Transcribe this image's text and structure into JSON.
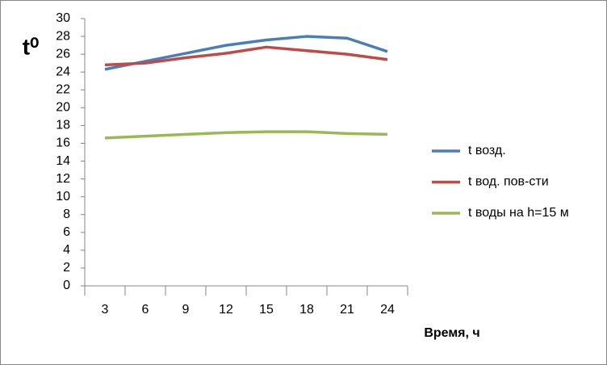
{
  "chart_data": {
    "type": "line",
    "ylabel": "t⁰",
    "xlabel": "Время, ч",
    "categories": [
      3,
      6,
      9,
      12,
      15,
      18,
      21,
      24
    ],
    "series": [
      {
        "name": "t возд.",
        "color": "#4a7ebb",
        "values": [
          24.3,
          25.2,
          26.1,
          27.0,
          27.6,
          28.0,
          27.8,
          26.3
        ]
      },
      {
        "name": "t вод. пов-сти",
        "color": "#be4b48",
        "values": [
          24.8,
          25.0,
          25.6,
          26.1,
          26.8,
          26.4,
          26.0,
          25.4
        ]
      },
      {
        "name": "t воды на h=15 м",
        "color": "#98b954",
        "values": [
          16.6,
          16.8,
          17.0,
          17.2,
          17.3,
          17.3,
          17.1,
          17.0
        ]
      }
    ],
    "ylim": [
      0,
      30
    ],
    "yticks": [
      0,
      2,
      4,
      6,
      8,
      10,
      12,
      14,
      16,
      18,
      20,
      22,
      24,
      26,
      28,
      30
    ],
    "grid": false,
    "legend": "right"
  }
}
